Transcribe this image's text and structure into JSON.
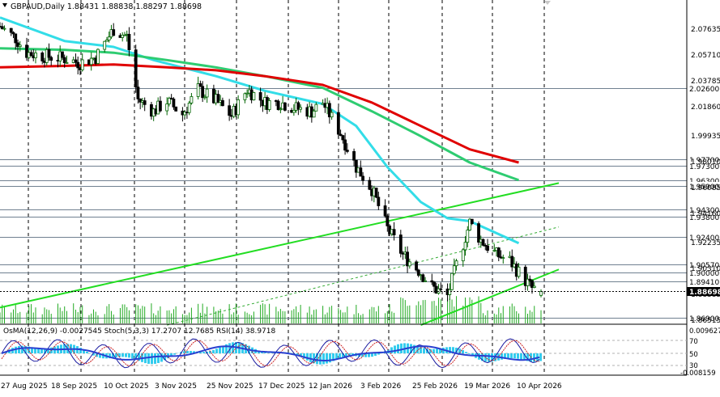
{
  "window": {
    "symbol_line": "GBPAUD,Daily  1.88431 1.88838 1.88297 1.88698"
  },
  "colors": {
    "background": "#ffffff",
    "grid": "#000000",
    "bull": "#006400",
    "bear": "#000000",
    "ema_red": "#e00000",
    "ema_green": "#2ecc71",
    "ema_cyan": "#33dde8",
    "trend_line": "#22dd22",
    "level_line": "#708090",
    "current_price_bg": "#000000",
    "osma_bar": "#33ccee",
    "stoch_main": "#1a1aa0",
    "stoch_signal": "#cc2222",
    "rsi": "#2a3fd0",
    "volume": "#22aa22"
  },
  "price_axis": {
    "ticks": [
      "2.07635",
      "2.05710",
      "2.03785",
      "2.01860",
      "1.99935",
      "1.98010",
      "1.96085",
      "1.94160",
      "1.92235",
      "1.90310",
      "1.88385",
      "1.86515"
    ]
  },
  "price_levels": [
    {
      "price": 2.026,
      "label": "2.02600"
    },
    {
      "price": 1.977,
      "label": "1.97700"
    },
    {
      "price": 1.973,
      "label": "1.97300"
    },
    {
      "price": 1.963,
      "label": "1.96300"
    },
    {
      "price": 1.959,
      "label": "1.95900"
    },
    {
      "price": 1.943,
      "label": "1.94300"
    },
    {
      "price": 1.938,
      "label": "1.93800"
    },
    {
      "price": 1.924,
      "label": "1.92400"
    },
    {
      "price": 1.9057,
      "label": "1.90570"
    },
    {
      "price": 1.9,
      "label": "1.90000"
    },
    {
      "price": 1.8941,
      "label": "1.89410"
    },
    {
      "price": 1.869,
      "label": "1.86900"
    }
  ],
  "current_price": {
    "value": 1.88698,
    "label": "1.88698"
  },
  "time_axis": {
    "labels": [
      "27 Aug 2025",
      "18 Sep 2025",
      "10 Oct 2025",
      "3 Nov 2025",
      "25 Nov 2025",
      "17 Dec 2025",
      "12 Jan 2026",
      "3 Feb 2026",
      "25 Feb 2026",
      "19 Mar 2026",
      "10 Apr 2026"
    ]
  },
  "indicator_panel": {
    "title": "OsMA(12,26,9) -0.0027545  Stoch(5,3,3) 17.2707 12.7685  RSI(14) 38.9718",
    "ticks": [
      "0.009627",
      "70",
      "50",
      "30",
      "-0.008159"
    ]
  },
  "chart_data": {
    "type": "candlestick",
    "symbol": "GBPAUD",
    "timeframe": "Daily",
    "last_bar": {
      "open": 1.88431,
      "high": 1.88838,
      "low": 1.88297,
      "close": 1.88698
    },
    "y_range": [
      1.86515,
      2.086
    ],
    "date_range": [
      "2025-08-20",
      "2026-04-20"
    ],
    "close_path": [
      [
        "2025-08-20",
        2.068
      ],
      [
        "2025-08-27",
        2.06
      ],
      [
        "2025-09-01",
        2.05
      ],
      [
        "2025-09-08",
        2.048
      ],
      [
        "2025-09-18",
        2.046
      ],
      [
        "2025-09-25",
        2.043
      ],
      [
        "2025-10-02",
        2.047
      ],
      [
        "2025-10-10",
        2.066
      ],
      [
        "2025-10-16",
        2.061
      ],
      [
        "2025-10-21",
        2.018
      ],
      [
        "2025-10-28",
        2.01
      ],
      [
        "2025-11-03",
        2.017
      ],
      [
        "2025-11-10",
        2.008
      ],
      [
        "2025-11-17",
        2.025
      ],
      [
        "2025-11-25",
        2.017
      ],
      [
        "2025-12-02",
        2.007
      ],
      [
        "2025-12-09",
        2.025
      ],
      [
        "2025-12-17",
        2.016
      ],
      [
        "2025-12-24",
        2.016
      ],
      [
        "2025-12-31",
        2.012
      ],
      [
        "2026-01-07",
        2.01
      ],
      [
        "2026-01-12",
        2.016
      ],
      [
        "2026-01-20",
        1.995
      ],
      [
        "2026-01-27",
        1.972
      ],
      [
        "2026-02-03",
        1.957
      ],
      [
        "2026-02-10",
        1.93
      ],
      [
        "2026-02-17",
        1.912
      ],
      [
        "2026-02-25",
        1.9
      ],
      [
        "2026-03-02",
        1.89
      ],
      [
        "2026-03-09",
        1.884
      ],
      [
        "2026-03-13",
        1.905
      ],
      [
        "2026-03-19",
        1.934
      ],
      [
        "2026-03-24",
        1.922
      ],
      [
        "2026-03-31",
        1.912
      ],
      [
        "2026-04-06",
        1.908
      ],
      [
        "2026-04-10",
        1.9
      ],
      [
        "2026-04-16",
        1.889
      ],
      [
        "2026-04-20",
        1.887
      ]
    ],
    "series": [
      {
        "color": "#33dde8",
        "points": [
          [
            "2025-08-20",
            2.074
          ],
          [
            "2025-09-18",
            2.058
          ],
          [
            "2025-10-10",
            2.054
          ],
          [
            "2025-10-28",
            2.045
          ],
          [
            "2025-11-25",
            2.034
          ],
          [
            "2025-12-17",
            2.024
          ],
          [
            "2026-01-12",
            2.015
          ],
          [
            "2026-01-27",
            2.0
          ],
          [
            "2026-02-10",
            1.972
          ],
          [
            "2026-02-25",
            1.948
          ],
          [
            "2026-03-09",
            1.937
          ],
          [
            "2026-03-19",
            1.935
          ],
          [
            "2026-04-10",
            1.92
          ]
        ]
      },
      {
        "color": "#2ecc71",
        "points": [
          [
            "2025-08-20",
            2.053
          ],
          [
            "2025-09-18",
            2.052
          ],
          [
            "2025-10-10",
            2.05
          ],
          [
            "2025-11-03",
            2.045
          ],
          [
            "2025-11-25",
            2.04
          ],
          [
            "2025-12-17",
            2.034
          ],
          [
            "2026-01-12",
            2.026
          ],
          [
            "2026-02-03",
            2.01
          ],
          [
            "2026-02-25",
            1.993
          ],
          [
            "2026-03-19",
            1.975
          ],
          [
            "2026-04-10",
            1.963
          ]
        ]
      },
      {
        "color": "#e00000",
        "points": [
          [
            "2025-08-20",
            2.04
          ],
          [
            "2025-09-18",
            2.041
          ],
          [
            "2025-10-10",
            2.042
          ],
          [
            "2025-11-03",
            2.04
          ],
          [
            "2025-11-25",
            2.038
          ],
          [
            "2025-12-17",
            2.034
          ],
          [
            "2026-01-12",
            2.028
          ],
          [
            "2026-02-03",
            2.016
          ],
          [
            "2026-02-25",
            2.0
          ],
          [
            "2026-03-19",
            1.984
          ],
          [
            "2026-04-10",
            1.975
          ]
        ]
      }
    ],
    "trend_lines": [
      {
        "kind": "solid",
        "from": [
          "2025-08-20",
          1.876
        ],
        "to": [
          "2026-04-28",
          1.961
        ]
      },
      {
        "kind": "solid",
        "from": [
          "2026-02-25",
          1.864
        ],
        "to": [
          "2026-04-28",
          1.902
        ]
      },
      {
        "kind": "dashed",
        "from": [
          "2025-11-03",
          1.864
        ],
        "to": [
          "2026-04-28",
          1.931
        ]
      }
    ]
  }
}
